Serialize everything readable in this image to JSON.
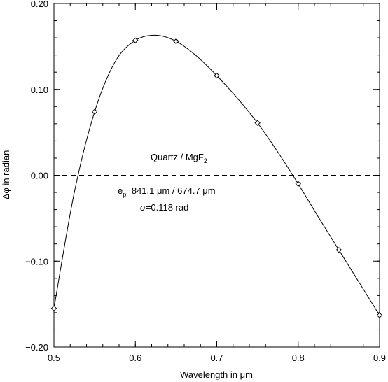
{
  "chart_data": {
    "type": "line",
    "title": "",
    "xlabel": "Wavelength in μm",
    "ylabel": "Δφ in radian",
    "xlim": [
      0.5,
      0.9
    ],
    "ylim": [
      -0.2,
      0.2
    ],
    "x_ticks": [
      "0.5",
      "0.6",
      "0.7",
      "0.8",
      "0.9"
    ],
    "y_ticks": [
      "0.20",
      "0.10",
      "0.00",
      "−0.10",
      "−0.20"
    ],
    "grid": false,
    "reference_line": {
      "y": 0.0,
      "style": "dashed"
    },
    "series": [
      {
        "kind": "curve",
        "x": [
          0.5,
          0.525,
          0.55,
          0.575,
          0.6,
          0.625,
          0.65,
          0.675,
          0.7,
          0.725,
          0.75,
          0.775,
          0.8,
          0.825,
          0.85,
          0.875,
          0.9
        ],
        "y": [
          -0.155,
          -0.02,
          0.074,
          0.132,
          0.157,
          0.163,
          0.156,
          0.139,
          0.116,
          0.09,
          0.061,
          0.027,
          -0.01,
          -0.049,
          -0.087,
          -0.125,
          -0.163
        ]
      },
      {
        "kind": "markers",
        "marker": "diamond",
        "x": [
          0.5,
          0.55,
          0.6,
          0.65,
          0.7,
          0.75,
          0.8,
          0.85,
          0.9
        ],
        "y": [
          -0.155,
          0.074,
          0.157,
          0.156,
          0.116,
          0.061,
          -0.01,
          -0.087,
          -0.163
        ]
      }
    ],
    "annotations": {
      "material": {
        "main": "Quartz / MgF",
        "sub": "2"
      },
      "thickness": {
        "pre": "e",
        "sub": "p",
        "post": "=841.1 μm / 674.7 μm"
      },
      "sigma": {
        "symbol": "σ",
        "text": "=0.118 rad"
      }
    },
    "colors": {
      "line": "#000000",
      "background": "#ffffff"
    }
  }
}
